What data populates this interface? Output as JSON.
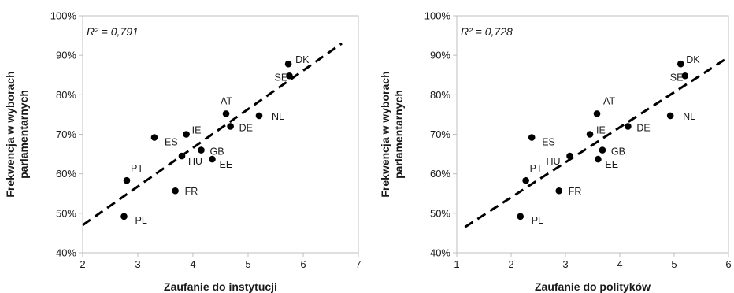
{
  "chart_data": [
    {
      "type": "scatter",
      "xlabel": "Zaufanie do instytucji",
      "ylabel": [
        "Frekwencja w wyborach",
        "parlamentarnych"
      ],
      "annotation": "R² = 0,791",
      "xlim": [
        2,
        7
      ],
      "ylim": [
        40,
        100
      ],
      "x_ticks": [
        2,
        3,
        4,
        5,
        6,
        7
      ],
      "y_ticks": [
        40,
        50,
        60,
        70,
        80,
        90,
        100
      ],
      "y_tick_labels": [
        "40%",
        "50%",
        "60%",
        "70%",
        "80%",
        "90%",
        "100%"
      ],
      "grid": false,
      "trendline": {
        "style": "dashed",
        "x": [
          2,
          6.7
        ],
        "y": [
          47,
          93
        ]
      },
      "points": [
        {
          "label": "DK",
          "x": 5.73,
          "y": 87.8
        },
        {
          "label": "SE",
          "x": 5.75,
          "y": 84.8
        },
        {
          "label": "NL",
          "x": 5.2,
          "y": 74.7
        },
        {
          "label": "AT",
          "x": 4.6,
          "y": 75.2
        },
        {
          "label": "DE",
          "x": 4.68,
          "y": 72.0
        },
        {
          "label": "IE",
          "x": 3.88,
          "y": 70.0
        },
        {
          "label": "ES",
          "x": 3.3,
          "y": 69.2
        },
        {
          "label": "GB",
          "x": 4.15,
          "y": 66.0
        },
        {
          "label": "HU",
          "x": 3.8,
          "y": 64.5
        },
        {
          "label": "EE",
          "x": 4.35,
          "y": 63.7
        },
        {
          "label": "PT",
          "x": 2.8,
          "y": 58.3
        },
        {
          "label": "FR",
          "x": 3.68,
          "y": 55.7
        },
        {
          "label": "PL",
          "x": 2.75,
          "y": 49.2
        }
      ]
    },
    {
      "type": "scatter",
      "xlabel": "Zaufanie do polityków",
      "ylabel": [
        "Frekwencja w wyborach",
        "parlamentarnych"
      ],
      "annotation": "R² = 0,728",
      "xlim": [
        1,
        6
      ],
      "ylim": [
        40,
        100
      ],
      "x_ticks": [
        1,
        2,
        3,
        4,
        5,
        6
      ],
      "y_ticks": [
        40,
        50,
        60,
        70,
        80,
        90,
        100
      ],
      "y_tick_labels": [
        "40%",
        "50%",
        "60%",
        "70%",
        "80%",
        "90%",
        "100%"
      ],
      "grid": false,
      "trendline": {
        "style": "dashed",
        "x": [
          1.15,
          6.0
        ],
        "y": [
          46.5,
          89.5
        ]
      },
      "points": [
        {
          "label": "DK",
          "x": 5.12,
          "y": 87.8
        },
        {
          "label": "SE",
          "x": 5.2,
          "y": 84.8
        },
        {
          "label": "NL",
          "x": 4.93,
          "y": 74.7
        },
        {
          "label": "AT",
          "x": 3.58,
          "y": 75.2
        },
        {
          "label": "DE",
          "x": 4.15,
          "y": 72.0
        },
        {
          "label": "IE",
          "x": 3.45,
          "y": 70.0
        },
        {
          "label": "ES",
          "x": 2.38,
          "y": 69.2
        },
        {
          "label": "GB",
          "x": 3.68,
          "y": 66.0
        },
        {
          "label": "HU",
          "x": 3.08,
          "y": 64.5
        },
        {
          "label": "EE",
          "x": 3.6,
          "y": 63.7
        },
        {
          "label": "PT",
          "x": 2.27,
          "y": 58.3
        },
        {
          "label": "FR",
          "x": 2.88,
          "y": 55.7
        },
        {
          "label": "PL",
          "x": 2.17,
          "y": 49.2
        }
      ]
    }
  ]
}
